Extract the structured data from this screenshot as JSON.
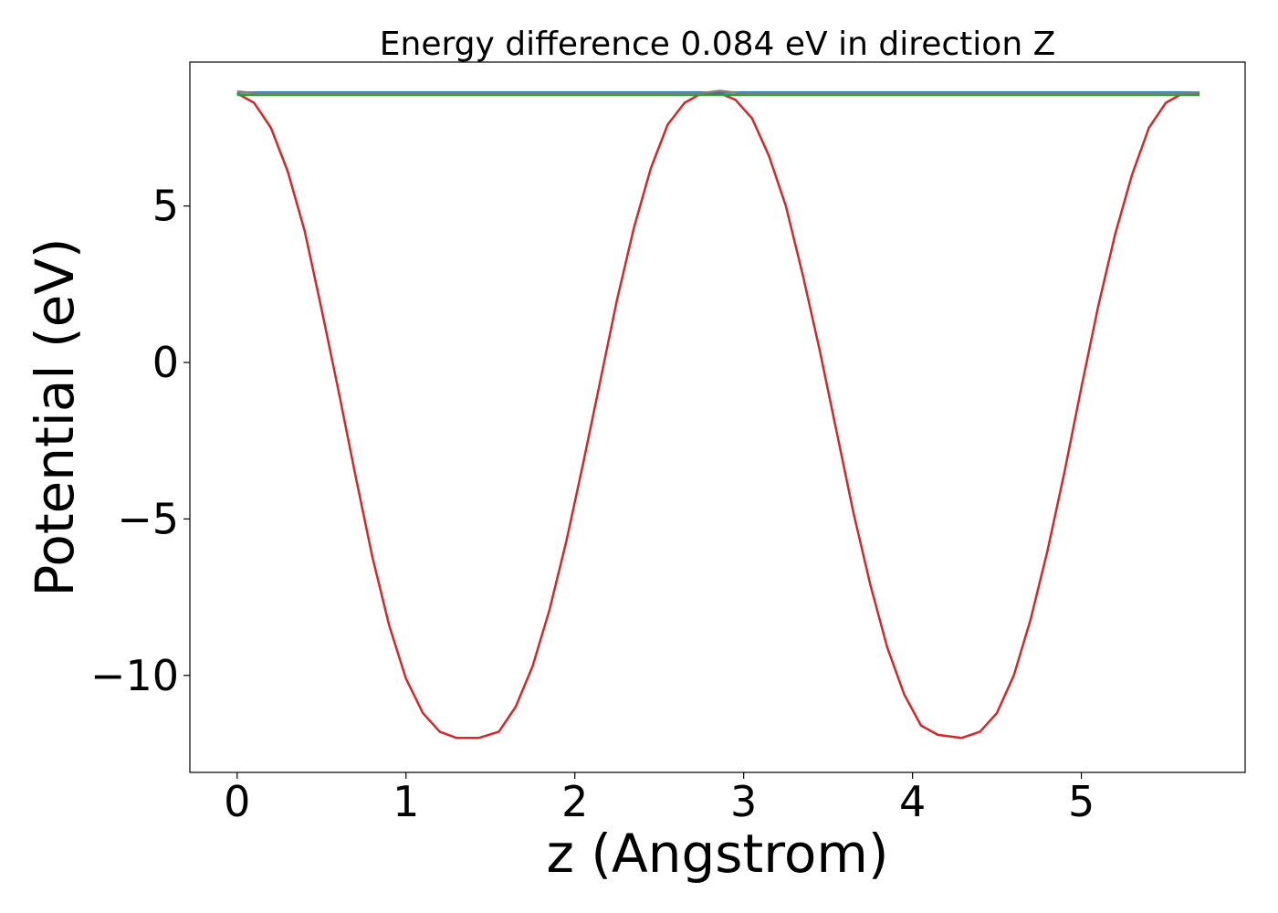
{
  "chart_data": {
    "type": "line",
    "title": "Energy difference 0.084 eV in direction Z",
    "xlabel": "z (Angstrom)",
    "ylabel": "Potential (eV)",
    "xlim": [
      -0.28,
      5.97
    ],
    "ylim": [
      -13.1,
      9.6
    ],
    "xticks": [
      0,
      1,
      2,
      3,
      4,
      5
    ],
    "yticks": [
      -10,
      -5,
      0,
      5
    ],
    "ytick_labels": [
      "−10",
      "−5",
      "0",
      "5"
    ],
    "grid": false,
    "legend": "none",
    "series": [
      {
        "color": "#d62728",
        "x": [
          0.0,
          0.1,
          0.2,
          0.3,
          0.4,
          0.5,
          0.6,
          0.7,
          0.8,
          0.9,
          1.0,
          1.1,
          1.2,
          1.3,
          1.43,
          1.55,
          1.65,
          1.75,
          1.85,
          1.95,
          2.05,
          2.15,
          2.25,
          2.35,
          2.45,
          2.55,
          2.65,
          2.75,
          2.86,
          2.95,
          3.05,
          3.15,
          3.25,
          3.35,
          3.45,
          3.55,
          3.65,
          3.75,
          3.85,
          3.95,
          4.05,
          4.15,
          4.29,
          4.4,
          4.5,
          4.6,
          4.7,
          4.8,
          4.9,
          5.0,
          5.1,
          5.2,
          5.3,
          5.4,
          5.5,
          5.6,
          5.7
        ],
        "y": [
          8.6,
          8.3,
          7.5,
          6.1,
          4.2,
          1.7,
          -0.9,
          -3.6,
          -6.2,
          -8.4,
          -10.1,
          -11.2,
          -11.8,
          -12.0,
          -12.0,
          -11.8,
          -11.0,
          -9.7,
          -7.9,
          -5.7,
          -3.2,
          -0.6,
          2.0,
          4.3,
          6.2,
          7.6,
          8.3,
          8.6,
          8.6,
          8.4,
          7.8,
          6.6,
          5.0,
          2.8,
          0.4,
          -2.2,
          -4.8,
          -7.1,
          -9.1,
          -10.6,
          -11.6,
          -11.9,
          -12.0,
          -11.8,
          -11.2,
          -10.0,
          -8.2,
          -6.0,
          -3.5,
          -0.8,
          1.8,
          4.1,
          6.0,
          7.5,
          8.3,
          8.6,
          8.6
        ]
      },
      {
        "color": "#1f77b4",
        "x": [
          0.0,
          5.7
        ],
        "y": [
          8.63,
          8.63
        ]
      },
      {
        "color": "#2ca02c",
        "x": [
          0.0,
          5.7
        ],
        "y": [
          8.55,
          8.55
        ]
      },
      {
        "color": "#7f7f7f",
        "x": [
          0.0,
          0.12,
          2.74,
          2.86,
          2.98,
          5.58,
          5.7
        ],
        "y": [
          8.66,
          8.6,
          8.6,
          8.68,
          8.6,
          8.6,
          8.63
        ]
      }
    ]
  }
}
